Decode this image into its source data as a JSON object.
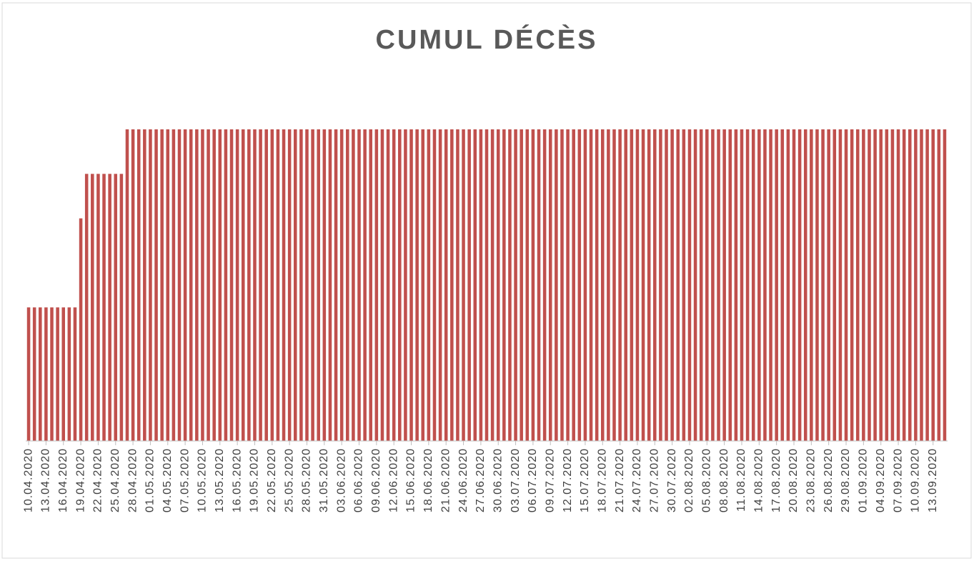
{
  "chart_data": {
    "type": "bar",
    "title": "CUMUL DÉCÈS",
    "color": "#c0504d",
    "ylim": [
      0,
      7
    ],
    "categories": [
      "10.04.2020",
      null,
      null,
      "13.04.2020",
      null,
      null,
      "16.04.2020",
      null,
      null,
      "19.04.2020",
      null,
      null,
      "22.04.2020",
      null,
      null,
      "25.04.2020",
      null,
      null,
      "28.04.2020",
      null,
      null,
      "01.05.2020",
      null,
      null,
      "04.05.2020",
      null,
      null,
      "07.05.2020",
      null,
      null,
      "10.05.2020",
      null,
      null,
      "13.05.2020",
      null,
      null,
      "16.05.2020",
      null,
      null,
      "19.05.2020",
      null,
      null,
      "22.05.2020",
      null,
      null,
      "25.05.2020",
      null,
      null,
      "28.05.2020",
      null,
      null,
      "31.05.2020",
      null,
      null,
      "03.06.2020",
      null,
      null,
      "06.06.2020",
      null,
      null,
      "09.06.2020",
      null,
      null,
      "12.06.2020",
      null,
      null,
      "15.06.2020",
      null,
      null,
      "18.06.2020",
      null,
      null,
      "21.06.2020",
      null,
      null,
      "24.06.2020",
      null,
      null,
      "27.06.2020",
      null,
      null,
      "30.06.2020",
      null,
      null,
      "03.07.2020",
      null,
      null,
      "06.07.2020",
      null,
      null,
      "09.07.2020",
      null,
      null,
      "12.07.2020",
      null,
      null,
      "15.07.2020",
      null,
      null,
      "18.07.2020",
      null,
      null,
      "21.07.2020",
      null,
      null,
      "24.07.2020",
      null,
      null,
      "27.07.2020",
      null,
      null,
      "30.07.2020",
      null,
      null,
      "02.08.2020",
      null,
      null,
      "05.08.2020",
      null,
      null,
      "08.08.2020",
      null,
      null,
      "11.08.2020",
      null,
      null,
      "14.08.2020",
      null,
      null,
      "17.08.2020",
      null,
      null,
      "20.08.2020",
      null,
      null,
      "23.08.2020",
      null,
      null,
      "26.08.2020",
      null,
      null,
      "29.08.2020",
      null,
      null,
      "01.09.2020",
      null,
      null,
      "04.09.2020",
      null,
      null,
      "07.09.2020",
      null,
      null,
      "10.09.2020",
      null,
      null,
      "13.09.2020",
      null,
      null
    ],
    "values": [
      3,
      3,
      3,
      3,
      3,
      3,
      3,
      3,
      3,
      5,
      6,
      6,
      6,
      6,
      6,
      6,
      6,
      7,
      7,
      7,
      7,
      7,
      7,
      7,
      7,
      7,
      7,
      7,
      7,
      7,
      7,
      7,
      7,
      7,
      7,
      7,
      7,
      7,
      7,
      7,
      7,
      7,
      7,
      7,
      7,
      7,
      7,
      7,
      7,
      7,
      7,
      7,
      7,
      7,
      7,
      7,
      7,
      7,
      7,
      7,
      7,
      7,
      7,
      7,
      7,
      7,
      7,
      7,
      7,
      7,
      7,
      7,
      7,
      7,
      7,
      7,
      7,
      7,
      7,
      7,
      7,
      7,
      7,
      7,
      7,
      7,
      7,
      7,
      7,
      7,
      7,
      7,
      7,
      7,
      7,
      7,
      7,
      7,
      7,
      7,
      7,
      7,
      7,
      7,
      7,
      7,
      7,
      7,
      7,
      7,
      7,
      7,
      7,
      7,
      7,
      7,
      7,
      7,
      7,
      7,
      7,
      7,
      7,
      7,
      7,
      7,
      7,
      7,
      7,
      7,
      7,
      7,
      7,
      7,
      7,
      7,
      7,
      7,
      7,
      7,
      7,
      7,
      7,
      7,
      7,
      7,
      7,
      7,
      7,
      7,
      7,
      7,
      7,
      7,
      7,
      7,
      7,
      7,
      7
    ]
  }
}
